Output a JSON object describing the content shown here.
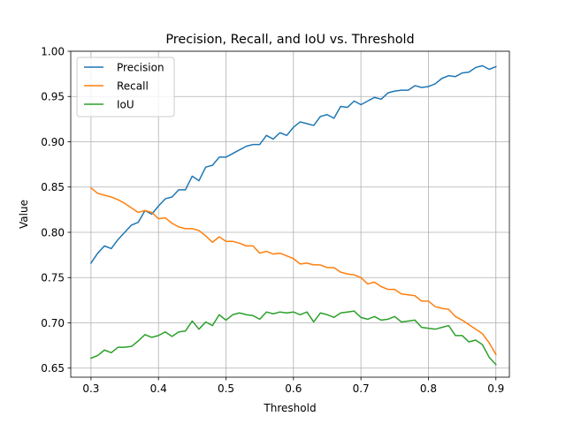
{
  "chart_data": {
    "type": "line",
    "title": "Precision, Recall, and IoU vs. Threshold",
    "xlabel": "Threshold",
    "ylabel": "Value",
    "xlim": [
      0.27,
      0.92
    ],
    "ylim": [
      0.64,
      1.0
    ],
    "xticks": [
      0.3,
      0.4,
      0.5,
      0.6,
      0.7,
      0.8,
      0.9
    ],
    "xtick_labels": [
      "0.3",
      "0.4",
      "0.5",
      "0.6",
      "0.7",
      "0.8",
      "0.9"
    ],
    "yticks": [
      0.65,
      0.7,
      0.75,
      0.8,
      0.85,
      0.9,
      0.95,
      1.0
    ],
    "ytick_labels": [
      "0.65",
      "0.70",
      "0.75",
      "0.80",
      "0.85",
      "0.90",
      "0.95",
      "1.00"
    ],
    "grid": true,
    "legend_position": "top-left",
    "x": [
      0.3,
      0.31,
      0.32,
      0.33,
      0.34,
      0.35,
      0.36,
      0.37,
      0.38,
      0.39,
      0.4,
      0.41,
      0.42,
      0.43,
      0.44,
      0.45,
      0.46,
      0.47,
      0.48,
      0.49,
      0.5,
      0.51,
      0.52,
      0.53,
      0.54,
      0.55,
      0.56,
      0.57,
      0.58,
      0.59,
      0.6,
      0.61,
      0.62,
      0.63,
      0.64,
      0.65,
      0.66,
      0.67,
      0.68,
      0.69,
      0.7,
      0.71,
      0.72,
      0.73,
      0.74,
      0.75,
      0.76,
      0.77,
      0.78,
      0.79,
      0.8,
      0.81,
      0.82,
      0.83,
      0.84,
      0.85,
      0.86,
      0.87,
      0.88,
      0.89,
      0.9
    ],
    "series": [
      {
        "name": "Precision",
        "color": "#1f77b4",
        "values": [
          0.766,
          0.777,
          0.785,
          0.782,
          0.792,
          0.8,
          0.808,
          0.811,
          0.824,
          0.82,
          0.829,
          0.837,
          0.839,
          0.847,
          0.847,
          0.862,
          0.857,
          0.872,
          0.874,
          0.883,
          0.883,
          0.887,
          0.891,
          0.895,
          0.897,
          0.897,
          0.907,
          0.903,
          0.91,
          0.907,
          0.916,
          0.922,
          0.92,
          0.918,
          0.928,
          0.93,
          0.926,
          0.939,
          0.938,
          0.945,
          0.941,
          0.945,
          0.949,
          0.947,
          0.954,
          0.956,
          0.957,
          0.957,
          0.962,
          0.96,
          0.961,
          0.964,
          0.97,
          0.973,
          0.972,
          0.976,
          0.977,
          0.982,
          0.984,
          0.98,
          0.983
        ]
      },
      {
        "name": "Recall",
        "color": "#ff7f0e",
        "values": [
          0.849,
          0.843,
          0.841,
          0.839,
          0.836,
          0.832,
          0.827,
          0.822,
          0.824,
          0.822,
          0.815,
          0.816,
          0.81,
          0.806,
          0.804,
          0.804,
          0.802,
          0.796,
          0.789,
          0.795,
          0.79,
          0.79,
          0.788,
          0.785,
          0.785,
          0.777,
          0.779,
          0.776,
          0.777,
          0.774,
          0.771,
          0.765,
          0.766,
          0.764,
          0.764,
          0.761,
          0.761,
          0.756,
          0.754,
          0.753,
          0.75,
          0.743,
          0.745,
          0.74,
          0.737,
          0.737,
          0.732,
          0.731,
          0.73,
          0.724,
          0.724,
          0.718,
          0.716,
          0.715,
          0.707,
          0.703,
          0.698,
          0.693,
          0.688,
          0.678,
          0.665
        ]
      },
      {
        "name": "IoU",
        "color": "#2ca02c",
        "values": [
          0.661,
          0.664,
          0.67,
          0.667,
          0.673,
          0.673,
          0.674,
          0.68,
          0.687,
          0.684,
          0.686,
          0.69,
          0.685,
          0.69,
          0.691,
          0.702,
          0.693,
          0.701,
          0.697,
          0.709,
          0.703,
          0.709,
          0.711,
          0.709,
          0.708,
          0.704,
          0.712,
          0.71,
          0.712,
          0.711,
          0.712,
          0.709,
          0.712,
          0.701,
          0.711,
          0.709,
          0.706,
          0.711,
          0.712,
          0.713,
          0.706,
          0.704,
          0.707,
          0.703,
          0.704,
          0.707,
          0.701,
          0.702,
          0.703,
          0.695,
          0.694,
          0.693,
          0.695,
          0.697,
          0.686,
          0.686,
          0.679,
          0.681,
          0.676,
          0.662,
          0.654
        ]
      }
    ]
  }
}
